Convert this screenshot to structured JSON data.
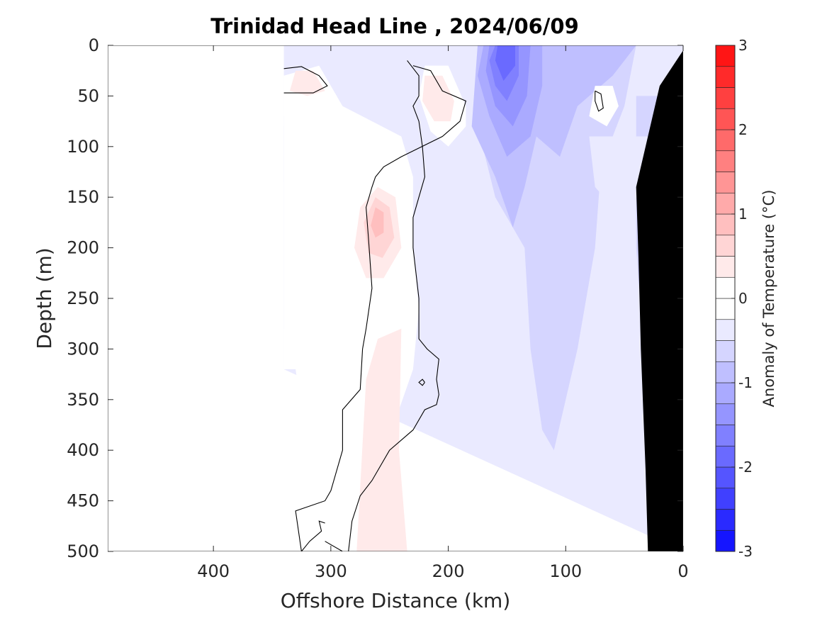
{
  "chart_data": {
    "type": "heatmap",
    "subtype": "filled-contour section",
    "title": "Trinidad Head Line , 2024/06/09",
    "xlabel": "Offshore Distance (km)",
    "ylabel": "Depth (m)",
    "x_axis": {
      "range": [
        490,
        0
      ],
      "reversed": true,
      "ticks": [
        400,
        300,
        200,
        100,
        0
      ],
      "tick_labels": [
        "400",
        "300",
        "200",
        "100",
        "0"
      ]
    },
    "y_axis": {
      "range": [
        0,
        500
      ],
      "reversed": true,
      "ticks": [
        0,
        50,
        100,
        150,
        200,
        250,
        300,
        350,
        400,
        450,
        500
      ],
      "tick_labels": [
        "0",
        "50",
        "100",
        "150",
        "200",
        "250",
        "300",
        "350",
        "400",
        "450",
        "500"
      ]
    },
    "colorbar": {
      "label": "Anomaly of Temperature (°C)",
      "range": [
        -3,
        3
      ],
      "step": 0.25,
      "ticks": [
        3,
        2,
        1,
        0,
        -1,
        -2,
        -3
      ],
      "tick_labels": [
        "3",
        "2",
        "1",
        "0",
        "-1",
        "-2",
        "-3"
      ],
      "colormap": "blue-white-red"
    },
    "data_extent_km": [
      340,
      0
    ],
    "contour_line_level": 0,
    "bathymetry_color": "#000000",
    "field_regions": [
      {
        "level": -0.25,
        "points": [
          [
            340,
            0
          ],
          [
            0,
            0
          ],
          [
            0,
            500
          ],
          [
            340,
            320
          ]
        ]
      },
      {
        "level": -0.5,
        "points": [
          [
            155,
            0
          ],
          [
            40,
            0
          ],
          [
            50,
            60
          ],
          [
            70,
            120
          ],
          [
            75,
            200
          ],
          [
            90,
            300
          ],
          [
            110,
            400
          ],
          [
            120,
            380
          ],
          [
            130,
            300
          ],
          [
            135,
            200
          ],
          [
            160,
            150
          ],
          [
            175,
            80
          ]
        ]
      },
      {
        "level": -0.5,
        "points": [
          [
            340,
            70
          ],
          [
            320,
            75
          ],
          [
            310,
            130
          ],
          [
            315,
            250
          ],
          [
            330,
            280
          ],
          [
            340,
            280
          ]
        ]
      },
      {
        "level": -0.5,
        "points": [
          [
            40,
            50
          ],
          [
            10,
            50
          ],
          [
            10,
            340
          ],
          [
            30,
            360
          ],
          [
            40,
            200
          ]
        ]
      },
      {
        "level": -0.75,
        "points": [
          [
            175,
            0
          ],
          [
            40,
            0
          ],
          [
            60,
            30
          ],
          [
            90,
            60
          ],
          [
            105,
            110
          ],
          [
            125,
            90
          ],
          [
            135,
            140
          ],
          [
            145,
            180
          ],
          [
            160,
            130
          ],
          [
            180,
            80
          ]
        ]
      },
      {
        "level": -0.75,
        "points": [
          [
            340,
            80
          ],
          [
            320,
            90
          ],
          [
            325,
            130
          ],
          [
            340,
            135
          ]
        ]
      },
      {
        "level": -1.0,
        "points": [
          [
            170,
            0
          ],
          [
            120,
            0
          ],
          [
            120,
            40
          ],
          [
            130,
            90
          ],
          [
            150,
            110
          ],
          [
            165,
            70
          ],
          [
            175,
            30
          ]
        ]
      },
      {
        "level": -1.25,
        "points": [
          [
            165,
            0
          ],
          [
            130,
            0
          ],
          [
            133,
            50
          ],
          [
            145,
            80
          ],
          [
            160,
            60
          ],
          [
            168,
            25
          ]
        ]
      },
      {
        "level": -1.5,
        "points": [
          [
            160,
            0
          ],
          [
            140,
            0
          ],
          [
            140,
            30
          ],
          [
            150,
            55
          ],
          [
            160,
            40
          ],
          [
            165,
            15
          ]
        ]
      },
      {
        "level": -1.75,
        "points": [
          [
            158,
            0
          ],
          [
            143,
            0
          ],
          [
            143,
            20
          ],
          [
            153,
            35
          ],
          [
            160,
            15
          ]
        ]
      },
      {
        "level": -0.25,
        "points": [
          [
            80,
            90
          ],
          [
            0,
            90
          ],
          [
            0,
            180
          ],
          [
            20,
            160
          ],
          [
            40,
            150
          ],
          [
            60,
            160
          ],
          [
            75,
            140
          ]
        ]
      },
      {
        "level": 0,
        "points": [
          [
            340,
            30
          ],
          [
            310,
            20
          ],
          [
            290,
            60
          ],
          [
            240,
            90
          ],
          [
            230,
            130
          ],
          [
            230,
            200
          ],
          [
            225,
            260
          ],
          [
            230,
            320
          ],
          [
            245,
            370
          ],
          [
            260,
            410
          ],
          [
            285,
            450
          ],
          [
            300,
            455
          ],
          [
            320,
            400
          ],
          [
            330,
            320
          ],
          [
            340,
            320
          ]
        ]
      },
      {
        "level": 0,
        "points": [
          [
            270,
            180
          ],
          [
            260,
            120
          ],
          [
            255,
            140
          ],
          [
            235,
            180
          ],
          [
            230,
            250
          ],
          [
            240,
            300
          ],
          [
            260,
            330
          ],
          [
            280,
            320
          ],
          [
            290,
            260
          ],
          [
            285,
            200
          ]
        ]
      },
      {
        "level": 0,
        "points": [
          [
            220,
            20
          ],
          [
            200,
            20
          ],
          [
            185,
            60
          ],
          [
            185,
            80
          ],
          [
            200,
            100
          ],
          [
            215,
            85
          ],
          [
            225,
            50
          ]
        ]
      },
      {
        "level": 0,
        "points": [
          [
            75,
            40
          ],
          [
            60,
            40
          ],
          [
            55,
            60
          ],
          [
            65,
            80
          ],
          [
            80,
            70
          ]
        ]
      },
      {
        "level": 0.25,
        "points": [
          [
            245,
            150
          ],
          [
            260,
            140
          ],
          [
            275,
            160
          ],
          [
            280,
            200
          ],
          [
            270,
            230
          ],
          [
            255,
            230
          ],
          [
            240,
            200
          ]
        ]
      },
      {
        "level": 0.25,
        "points": [
          [
            240,
            280
          ],
          [
            260,
            290
          ],
          [
            270,
            330
          ],
          [
            278,
            500
          ],
          [
            235,
            500
          ],
          [
            242,
            400
          ]
        ]
      },
      {
        "level": 0.25,
        "points": [
          [
            330,
            25
          ],
          [
            315,
            25
          ],
          [
            305,
            45
          ],
          [
            320,
            50
          ],
          [
            335,
            45
          ]
        ]
      },
      {
        "level": 0.25,
        "points": [
          [
            220,
            30
          ],
          [
            205,
            30
          ],
          [
            195,
            55
          ],
          [
            198,
            75
          ],
          [
            212,
            75
          ],
          [
            222,
            55
          ]
        ]
      },
      {
        "level": 0.5,
        "points": [
          [
            250,
            160
          ],
          [
            262,
            150
          ],
          [
            272,
            175
          ],
          [
            268,
            205
          ],
          [
            256,
            210
          ],
          [
            246,
            190
          ]
        ]
      },
      {
        "level": 0.75,
        "points": [
          [
            255,
            165
          ],
          [
            262,
            160
          ],
          [
            266,
            178
          ],
          [
            262,
            190
          ],
          [
            255,
            185
          ]
        ]
      }
    ],
    "contour_line_segments": [
      [
        [
          340,
          23
        ],
        [
          325,
          21
        ],
        [
          310,
          30
        ],
        [
          303,
          40
        ],
        [
          315,
          47
        ],
        [
          340,
          47
        ]
      ],
      [
        [
          235,
          15
        ],
        [
          225,
          30
        ],
        [
          225,
          50
        ],
        [
          230,
          60
        ],
        [
          225,
          75
        ],
        [
          222,
          100
        ],
        [
          220,
          130
        ],
        [
          225,
          150
        ],
        [
          230,
          170
        ],
        [
          230,
          200
        ],
        [
          225,
          250
        ],
        [
          225,
          290
        ],
        [
          218,
          300
        ],
        [
          208,
          310
        ],
        [
          210,
          330
        ],
        [
          208,
          345
        ],
        [
          210,
          355
        ],
        [
          220,
          360
        ],
        [
          230,
          380
        ],
        [
          250,
          400
        ],
        [
          265,
          430
        ],
        [
          275,
          445
        ],
        [
          282,
          470
        ],
        [
          285,
          500
        ]
      ],
      [
        [
          230,
          20
        ],
        [
          215,
          25
        ],
        [
          205,
          45
        ],
        [
          185,
          55
        ],
        [
          190,
          75
        ],
        [
          205,
          90
        ],
        [
          240,
          110
        ],
        [
          255,
          120
        ],
        [
          262,
          130
        ],
        [
          265,
          140
        ],
        [
          270,
          160
        ],
        [
          268,
          190
        ],
        [
          265,
          240
        ],
        [
          270,
          280
        ],
        [
          273,
          300
        ],
        [
          275,
          340
        ],
        [
          290,
          360
        ],
        [
          290,
          400
        ],
        [
          300,
          440
        ],
        [
          305,
          450
        ],
        [
          330,
          460
        ],
        [
          325,
          500
        ]
      ],
      [
        [
          75,
          45
        ],
        [
          70,
          48
        ],
        [
          68,
          62
        ],
        [
          72,
          65
        ],
        [
          75,
          55
        ],
        [
          75,
          45
        ]
      ],
      [
        [
          220,
          333
        ],
        [
          222,
          330
        ],
        [
          225,
          333
        ],
        [
          222,
          336
        ],
        [
          220,
          333
        ]
      ],
      [
        [
          305,
          490
        ],
        [
          290,
          500
        ]
      ],
      [
        [
          305,
          472
        ],
        [
          310,
          470
        ],
        [
          308,
          480
        ],
        [
          318,
          490
        ],
        [
          325,
          500
        ]
      ]
    ],
    "bathymetry_polygon": [
      [
        0,
        5
      ],
      [
        0,
        500
      ],
      [
        30,
        500
      ],
      [
        32,
        420
      ],
      [
        36,
        300
      ],
      [
        38,
        210
      ],
      [
        40,
        140
      ],
      [
        20,
        40
      ],
      [
        0,
        5
      ]
    ]
  }
}
